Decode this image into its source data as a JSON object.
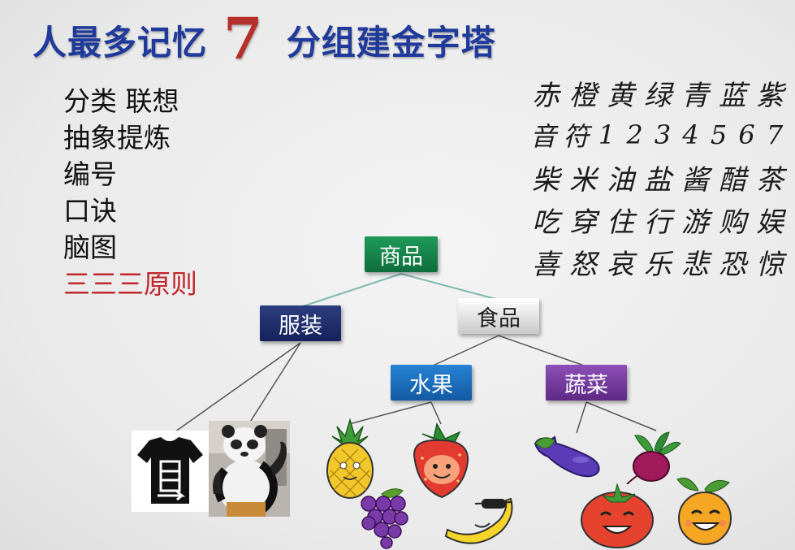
{
  "title": {
    "left": "人最多记忆",
    "number": "7",
    "right": "分组建金字塔"
  },
  "methods": [
    "分类 联想",
    "抽象提炼",
    "编号",
    "口诀",
    "脑图"
  ],
  "methods_highlight": "三三三原则",
  "grid": [
    [
      "赤",
      "橙",
      "黄",
      "绿",
      "青",
      "蓝",
      "紫"
    ],
    [
      "音",
      "符",
      "1",
      "2",
      "3",
      "4",
      "5",
      "6",
      "7"
    ],
    [
      "柴",
      "米",
      "油",
      "盐",
      "酱",
      "醋",
      "茶"
    ],
    [
      "吃",
      "穿",
      "住",
      "行",
      "游",
      "购",
      "娱"
    ],
    [
      "喜",
      "怒",
      "哀",
      "乐",
      "悲",
      "恐",
      "惊"
    ]
  ],
  "tree": {
    "root": "商品",
    "clothing": "服装",
    "food": "食品",
    "fruit": "水果",
    "vegetable": "蔬菜"
  },
  "colors": {
    "title": "#1f3a9a",
    "seven": "#b5302a",
    "highlight": "#c1272d",
    "root": "#138049",
    "clothing": "#1e2b6b",
    "fruit": "#1c6fbf",
    "vegetable": "#74399e"
  },
  "images": [
    "tshirt-icon",
    "panda-costume-image",
    "pineapple-icon",
    "strawberry-icon",
    "grapes-icon",
    "banana-icon",
    "eggplant-icon",
    "beet-icon",
    "tomato-icon",
    "orange-icon"
  ]
}
